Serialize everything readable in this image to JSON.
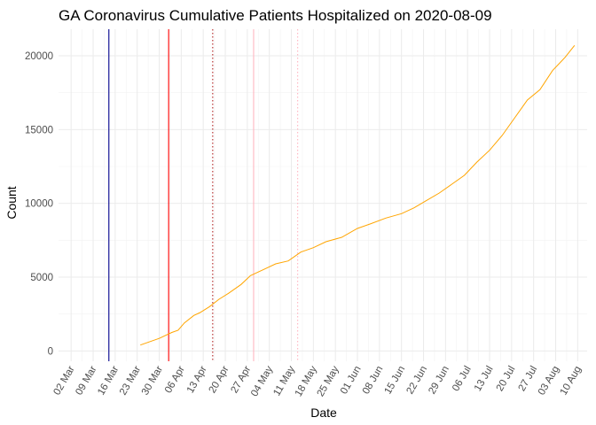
{
  "chart_data": {
    "type": "line",
    "title": "GA Coronavirus Cumulative Patients Hospitalized on 2020-08-09",
    "xlabel": "Date",
    "ylabel": "Count",
    "x_ticks": [
      "02 Mar",
      "09 Mar",
      "16 Mar",
      "23 Mar",
      "30 Mar",
      "06 Apr",
      "13 Apr",
      "20 Apr",
      "27 Apr",
      "04 May",
      "11 May",
      "18 May",
      "25 May",
      "01 Jun",
      "08 Jun",
      "15 Jun",
      "22 Jun",
      "29 Jun",
      "06 Jul",
      "13 Jul",
      "20 Jul",
      "27 Jul",
      "03 Aug",
      "10 Aug"
    ],
    "x_tick_dates": [
      "2020-03-02",
      "2020-03-09",
      "2020-03-16",
      "2020-03-23",
      "2020-03-30",
      "2020-04-06",
      "2020-04-13",
      "2020-04-20",
      "2020-04-27",
      "2020-05-04",
      "2020-05-11",
      "2020-05-18",
      "2020-05-25",
      "2020-06-01",
      "2020-06-08",
      "2020-06-15",
      "2020-06-22",
      "2020-06-29",
      "2020-07-06",
      "2020-07-13",
      "2020-07-20",
      "2020-07-27",
      "2020-08-03",
      "2020-08-10"
    ],
    "xlim": [
      "2020-02-27",
      "2020-08-13"
    ],
    "y_ticks": [
      0,
      5000,
      10000,
      15000,
      20000
    ],
    "ylim": [
      -700,
      21800
    ],
    "grid": true,
    "series": [
      {
        "color": "#ffa500",
        "x": [
          "2020-03-24",
          "2020-03-26",
          "2020-03-28",
          "2020-03-30",
          "2020-04-01",
          "2020-04-03",
          "2020-04-05",
          "2020-04-07",
          "2020-04-10",
          "2020-04-12",
          "2020-04-15",
          "2020-04-18",
          "2020-04-21",
          "2020-04-25",
          "2020-04-28",
          "2020-05-02",
          "2020-05-06",
          "2020-05-10",
          "2020-05-14",
          "2020-05-18",
          "2020-05-22",
          "2020-05-27",
          "2020-06-01",
          "2020-06-05",
          "2020-06-10",
          "2020-06-15",
          "2020-06-19",
          "2020-06-23",
          "2020-06-27",
          "2020-07-01",
          "2020-07-05",
          "2020-07-09",
          "2020-07-13",
          "2020-07-17",
          "2020-07-21",
          "2020-07-25",
          "2020-07-29",
          "2020-08-02",
          "2020-08-06",
          "2020-08-09"
        ],
        "y": [
          400,
          550,
          700,
          850,
          1050,
          1250,
          1400,
          1900,
          2400,
          2600,
          3000,
          3500,
          3900,
          4500,
          5100,
          5500,
          5900,
          6100,
          6700,
          7000,
          7400,
          7700,
          8300,
          8600,
          9000,
          9300,
          9700,
          10200,
          10700,
          11300,
          11900,
          12800,
          13600,
          14600,
          15800,
          17000,
          17700,
          19000,
          19900,
          20700
        ]
      }
    ],
    "vertical_lines": [
      {
        "date": "2020-03-14",
        "color": "#00008b",
        "style": "solid"
      },
      {
        "date": "2020-04-02",
        "color": "#ff0000",
        "style": "solid"
      },
      {
        "date": "2020-04-16",
        "color": "#b22222",
        "style": "dotted"
      },
      {
        "date": "2020-04-29",
        "color": "#ffb6c1",
        "style": "solid"
      },
      {
        "date": "2020-05-13",
        "color": "#ffb6c1",
        "style": "dotted"
      }
    ]
  }
}
